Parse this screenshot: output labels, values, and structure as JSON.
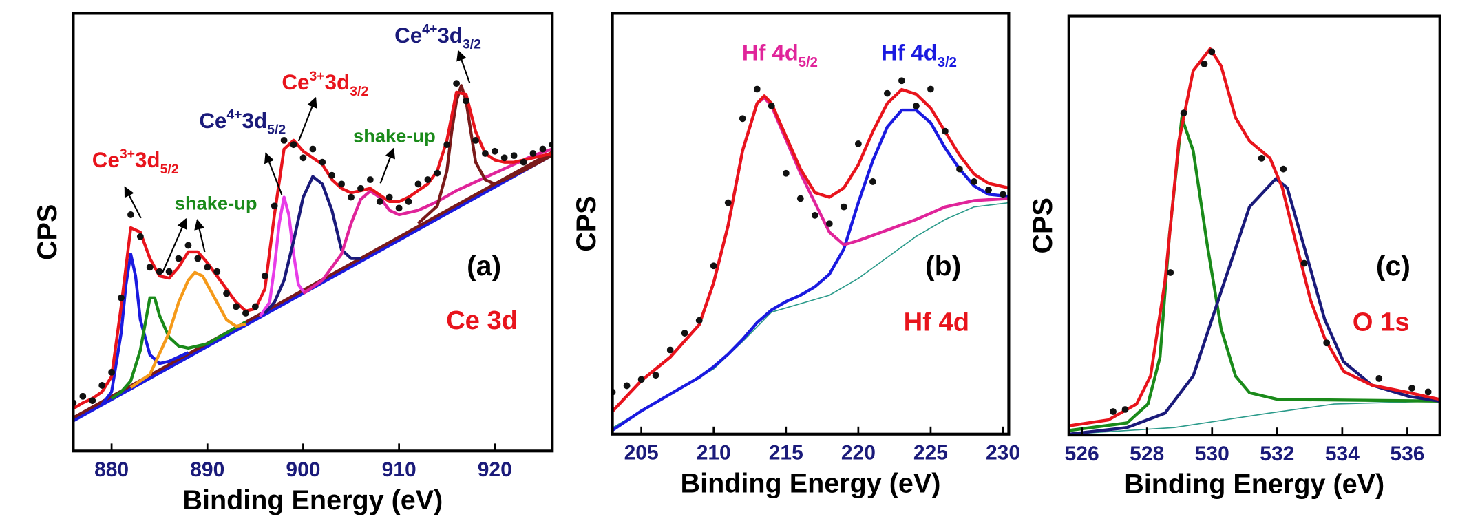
{
  "chart_data": [
    {
      "type": "line",
      "x_label": "Binding Energy (eV)",
      "y_label": "CPS",
      "xlim": [
        876,
        926
      ],
      "xticks": [
        880,
        890,
        900,
        910,
        920
      ],
      "ylim": [
        0,
        100
      ],
      "annotations": [
        {
          "parts": [
            {
              "text": "Ce"
            },
            {
              "text": "3+",
              "style": "sup"
            },
            {
              "text": "3d"
            },
            {
              "text": "5/2",
              "style": "sub"
            }
          ],
          "color": "#e8141c"
        },
        {
          "text": "shake-up",
          "color": "#1a8a1a"
        },
        {
          "parts": [
            {
              "text": "Ce"
            },
            {
              "text": "4+",
              "style": "sup"
            },
            {
              "text": "3d"
            },
            {
              "text": "5/2",
              "style": "sub"
            }
          ],
          "color": "#1a1a7a"
        },
        {
          "parts": [
            {
              "text": "Ce"
            },
            {
              "text": "3+",
              "style": "sup"
            },
            {
              "text": "3d"
            },
            {
              "text": "3/2",
              "style": "sub"
            }
          ],
          "color": "#e8141c"
        },
        {
          "text": "shake-up",
          "color": "#1a8a1a"
        },
        {
          "parts": [
            {
              "text": "Ce"
            },
            {
              "text": "4+",
              "style": "sup"
            },
            {
              "text": "3d"
            },
            {
              "text": "3/2",
              "style": "sub"
            }
          ],
          "color": "#1a1a7a"
        },
        {
          "text": "(a)",
          "color": "#000000"
        },
        {
          "text": "Ce 3d",
          "color": "#e8141c"
        }
      ],
      "series": [
        {
          "color": "#1a1ae0",
          "x": [
            876,
            926
          ],
          "values": [
            6.9,
            67.6
          ]
        },
        {
          "color": "#7a1a1a",
          "x": [
            876,
            926
          ],
          "values": [
            7.6,
            68.3
          ]
        },
        {
          "color": "#1a1ae0",
          "x": [
            879,
            880,
            881,
            881.5,
            882,
            882.5,
            883,
            884,
            885,
            886,
            887,
            888
          ],
          "values": [
            10.6,
            13.5,
            27,
            38,
            45,
            40,
            30,
            22,
            20,
            20.5,
            21.5,
            22.5
          ]
        },
        {
          "color": "#1a8a1a",
          "x": [
            880,
            881,
            882,
            883,
            884,
            884.5,
            885,
            886,
            887,
            888,
            890,
            892,
            894
          ],
          "values": [
            12,
            13.5,
            16,
            23,
            35,
            35,
            31,
            26,
            24,
            23.5,
            24.5,
            27,
            29.5
          ]
        },
        {
          "color": "#f59a1a",
          "x": [
            882,
            884,
            886,
            887,
            888,
            888.7,
            889.5,
            890.5,
            892,
            893,
            894
          ],
          "values": [
            14.5,
            17.5,
            27,
            34,
            39,
            40.8,
            40,
            36,
            30,
            28.5,
            29
          ]
        },
        {
          "color": "#e83ce8",
          "x": [
            895.5,
            896.5,
            897,
            897.5,
            898,
            898.5,
            899,
            899.5,
            900,
            900.5
          ],
          "values": [
            30.8,
            34,
            42,
            52,
            58,
            54,
            45,
            38,
            36.5,
            36.5
          ]
        },
        {
          "color": "#1a1a7a",
          "x": [
            896,
            897,
            898,
            899,
            900,
            901,
            902,
            903,
            904,
            905,
            906
          ],
          "values": [
            31.5,
            34,
            39,
            48,
            58,
            62.7,
            61,
            55,
            46,
            44,
            44
          ]
        },
        {
          "color": "#e0249a",
          "x": [
            900,
            902,
            904,
            905,
            906,
            907,
            908,
            909,
            910,
            912,
            914,
            916,
            918,
            920,
            922,
            924,
            926
          ],
          "values": [
            36,
            39,
            45,
            52,
            57.5,
            59.4,
            58,
            55,
            54,
            55,
            57,
            59.5,
            61.5,
            63.5,
            65.5,
            67.5,
            69
          ]
        },
        {
          "color": "#7a1a1a",
          "x": [
            912,
            914,
            915,
            915.5,
            916,
            916.5,
            917,
            917.5,
            918,
            919,
            920,
            922,
            924,
            926
          ],
          "values": [
            52,
            56,
            64,
            73,
            80,
            83.5,
            80,
            73,
            66,
            62,
            61,
            63,
            65.2,
            67.6
          ]
        },
        {
          "color": "#e8141c",
          "x": [
            876,
            877,
            878,
            879,
            880,
            881,
            882,
            883,
            884,
            885,
            886,
            887,
            888,
            889,
            890,
            891,
            892,
            893,
            894,
            895,
            896,
            897,
            898,
            899,
            900,
            901,
            902,
            903,
            904,
            905,
            906,
            907,
            908,
            909,
            910,
            911,
            912,
            913,
            914,
            915,
            916,
            917,
            918,
            919,
            920,
            921,
            922,
            923,
            924,
            925,
            926
          ],
          "values": [
            9.7,
            11,
            12,
            13.5,
            17,
            33,
            51,
            50,
            44,
            40,
            39.5,
            42,
            45.5,
            45.5,
            43,
            40,
            37,
            34,
            32,
            32.5,
            37,
            54,
            69,
            71,
            68.5,
            67,
            65.5,
            62,
            60,
            59,
            59.5,
            60,
            58.5,
            57,
            57,
            58,
            59.5,
            61,
            64,
            71,
            82,
            81.5,
            73,
            68,
            66.5,
            66,
            66,
            66.5,
            67,
            67.5,
            68
          ]
        },
        {
          "color": "#111111",
          "marker": "circle",
          "x": [
            876,
            877,
            878,
            879,
            880,
            881,
            882,
            883,
            884,
            885,
            886,
            887,
            888,
            889,
            890,
            891,
            892,
            893,
            894,
            895,
            896,
            897,
            898,
            899,
            900,
            901,
            902,
            903,
            904,
            905,
            906,
            907,
            908,
            909,
            910,
            911,
            912,
            913,
            914,
            915,
            916,
            917,
            918,
            919,
            920,
            921,
            922,
            923,
            924,
            925,
            926
          ],
          "values": [
            11,
            12.5,
            11.5,
            15,
            18,
            35,
            54,
            49,
            42,
            41,
            41,
            44,
            47,
            44,
            42,
            41,
            36,
            33,
            31.5,
            33,
            40,
            56,
            71,
            70,
            67,
            69,
            66,
            63,
            61,
            58,
            60,
            62,
            57,
            58,
            55.5,
            57,
            61,
            62,
            63.5,
            70,
            84,
            80,
            71,
            68,
            68.5,
            67,
            67.5,
            66,
            68,
            69,
            70
          ]
        }
      ]
    },
    {
      "type": "line",
      "x_label": "Binding Energy (eV)",
      "y_label": "CPS",
      "xlim": [
        203,
        230.4
      ],
      "xticks": [
        205,
        210,
        215,
        220,
        225,
        230
      ],
      "ylim": [
        0,
        100
      ],
      "annotations": [
        {
          "parts": [
            {
              "text": "Hf 4d"
            },
            {
              "text": "5/2",
              "style": "sub"
            }
          ],
          "color": "#e0249a"
        },
        {
          "parts": [
            {
              "text": "Hf 4d"
            },
            {
              "text": "3/2",
              "style": "sub"
            }
          ],
          "color": "#1a1ae0"
        },
        {
          "text": "(b)",
          "color": "#000000"
        },
        {
          "text": "Hf 4d",
          "color": "#e8141c"
        }
      ],
      "series": [
        {
          "color": "#2a9a8a",
          "linewidth": 1.2,
          "x": [
            203,
            205,
            210,
            212,
            214,
            216,
            218,
            220,
            222,
            224,
            226,
            228,
            230.4
          ],
          "values": [
            1.5,
            5.5,
            15.5,
            22,
            29,
            31,
            33,
            37,
            42,
            47,
            51,
            54,
            55
          ]
        },
        {
          "color": "#1a1ae0",
          "x": [
            203,
            205,
            207,
            209,
            210,
            211,
            212,
            213,
            214,
            215,
            216,
            217,
            218,
            219,
            220,
            221,
            222,
            223,
            224,
            225,
            226,
            227,
            228,
            229,
            230.4
          ],
          "values": [
            0.9,
            5.5,
            9.5,
            13.5,
            16,
            19,
            22.5,
            26.5,
            29.5,
            31.5,
            33,
            35,
            38,
            44,
            55,
            65,
            73,
            77,
            77,
            74,
            68,
            63,
            59,
            57,
            56.5
          ]
        },
        {
          "color": "#e0249a",
          "x": [
            203,
            205,
            207,
            209,
            210,
            211,
            212,
            213,
            213.5,
            214,
            215,
            216,
            217,
            218,
            219,
            220,
            222,
            224,
            226,
            228,
            230.4
          ],
          "values": [
            5.4,
            12.7,
            18.3,
            26,
            36,
            49.6,
            67.4,
            78.6,
            80,
            78,
            70,
            62,
            55,
            48,
            45,
            46,
            48.5,
            51,
            54,
            55.5,
            56
          ]
        },
        {
          "color": "#e8141c",
          "x": [
            203,
            205,
            207,
            209,
            210,
            211,
            212,
            213,
            213.5,
            214,
            215,
            216,
            217,
            218,
            219,
            220,
            221,
            222,
            223,
            224,
            225,
            226,
            227,
            228,
            229,
            230.4
          ],
          "values": [
            5.4,
            12.7,
            18.3,
            26,
            36,
            49.6,
            67.4,
            78.6,
            80.4,
            78.6,
            70.8,
            63,
            57.4,
            56.3,
            58.5,
            64,
            71.9,
            78.6,
            81.9,
            80.8,
            77.5,
            71.9,
            66.3,
            61.8,
            59.6,
            58.5
          ]
        },
        {
          "color": "#111111",
          "marker": "circle",
          "x": [
            203,
            204,
            205,
            206,
            207,
            208,
            209,
            210,
            211,
            212,
            213,
            214,
            215,
            216,
            217,
            218,
            219,
            220,
            221,
            222,
            223,
            224,
            225,
            226,
            227,
            228,
            229,
            230
          ],
          "values": [
            10,
            11.5,
            13,
            14,
            20,
            24,
            27,
            40,
            55,
            75,
            82,
            78,
            62,
            56,
            52,
            50,
            54,
            69,
            60,
            81,
            84,
            78,
            82,
            72,
            63,
            60,
            58,
            57
          ]
        }
      ]
    },
    {
      "type": "line",
      "x_label": "Binding Energy (eV)",
      "y_label": "CPS",
      "xlim": [
        525.6,
        537
      ],
      "xticks": [
        526,
        528,
        530,
        532,
        534,
        536
      ],
      "ylim": [
        0,
        100
      ],
      "annotations": [
        {
          "text": "(c)",
          "color": "#000000"
        },
        {
          "text": "O 1s",
          "color": "#e8141c"
        }
      ],
      "series": [
        {
          "color": "#2a9a8a",
          "linewidth": 1.2,
          "x": [
            525.6,
            528.84,
            531.73,
            533.75,
            537
          ],
          "values": [
            0.2,
            1.8,
            5.2,
            7.4,
            8.1
          ]
        },
        {
          "color": "#1a8a1a",
          "x": [
            525.6,
            527.39,
            528.03,
            528.4,
            528.69,
            529.07,
            529.42,
            529.85,
            530.28,
            530.72,
            531.15,
            532.02,
            537
          ],
          "values": [
            1.1,
            2.9,
            7.4,
            18.6,
            47.8,
            75.8,
            67.9,
            45.5,
            25.3,
            14.1,
            10.1,
            8.5,
            8.1
          ]
        },
        {
          "color": "#1a1a7a",
          "x": [
            525.6,
            527.39,
            528.55,
            529.42,
            530.28,
            531.15,
            531.96,
            532.31,
            532.89,
            533.46,
            534.04,
            534.91,
            536.06,
            537
          ],
          "values": [
            0.2,
            1.8,
            5.2,
            14.1,
            34.3,
            54.5,
            61.2,
            59,
            43.3,
            27.6,
            17.5,
            11.9,
            9.2,
            8.1
          ]
        },
        {
          "color": "#e8141c",
          "x": [
            525.6,
            526.81,
            527.68,
            528.11,
            528.55,
            528.98,
            529.42,
            529.94,
            530.28,
            530.72,
            531.15,
            531.78,
            532.16,
            532.59,
            533.03,
            533.46,
            534.04,
            534.91,
            536.06,
            537
          ],
          "values": [
            2.2,
            3.6,
            7.4,
            14.1,
            36.5,
            70.2,
            87,
            92.2,
            88.1,
            75.8,
            70.2,
            66.1,
            59,
            45.5,
            32.1,
            23.1,
            15.2,
            11.9,
            10.1,
            8.5
          ]
        },
        {
          "color": "#111111",
          "marker": "circle",
          "x": [
            526.96,
            527.33,
            528.72,
            529.13,
            529.76,
            529.99,
            531.52,
            532.19,
            532.83,
            533.52,
            535.13,
            536.14,
            536.64
          ],
          "values": [
            5.6,
            6.1,
            38.8,
            76.9,
            88.6,
            91.5,
            66.1,
            63.5,
            41,
            22,
            13.5,
            11.2,
            10.3
          ]
        }
      ]
    }
  ]
}
